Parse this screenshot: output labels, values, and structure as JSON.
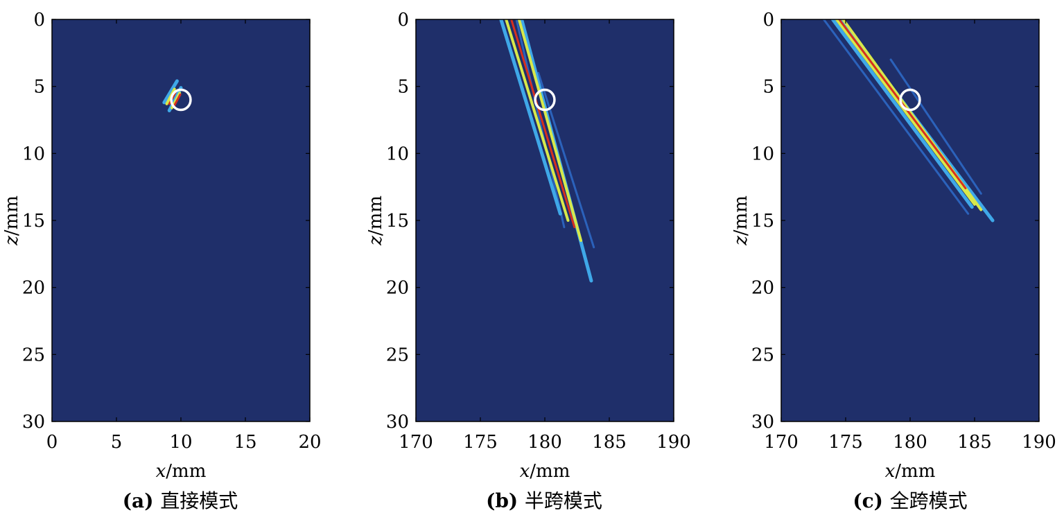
{
  "colors": {
    "background": "#1f2f6a",
    "frame": "#000000",
    "marker": "#ffffff",
    "beam_outer": "#3fa8e8",
    "beam_mid": "#d8e84a",
    "beam_core": "#d7301f",
    "beam_faint": "#2f6fd0"
  },
  "chart_data": [
    {
      "type": "heatmap",
      "xlabel": {
        "var": "x",
        "unit": "/mm"
      },
      "ylabel": {
        "var": "z",
        "unit": "/mm"
      },
      "xlim": [
        0,
        20
      ],
      "ylim": [
        0,
        30
      ],
      "y_inverted": true,
      "xticks": [
        0,
        5,
        10,
        15,
        20
      ],
      "yticks": [
        0,
        5,
        10,
        15,
        20,
        25,
        30
      ],
      "xtick_labels": [
        "0",
        "5",
        "10",
        "15",
        "20"
      ],
      "ytick_labels": [
        "0",
        "5",
        "10",
        "15",
        "20",
        "25",
        "30"
      ],
      "caption": {
        "tag": "(a)",
        "text": "直接模式"
      },
      "marker_circle": {
        "x": 10,
        "z": 6,
        "r": 0.75
      },
      "beams": [
        {
          "x0": 9.7,
          "z0": 4.6,
          "x1": 8.7,
          "z1": 6.2,
          "level": "outer"
        },
        {
          "x0": 10.0,
          "z0": 5.1,
          "x1": 9.1,
          "z1": 6.8,
          "level": "outer"
        },
        {
          "x0": 9.5,
          "z0": 5.2,
          "x1": 8.9,
          "z1": 6.3,
          "level": "mid"
        },
        {
          "x0": 9.9,
          "z0": 5.5,
          "x1": 9.3,
          "z1": 6.6,
          "level": "mid"
        },
        {
          "x0": 9.6,
          "z0": 5.4,
          "x1": 9.1,
          "z1": 6.3,
          "level": "core"
        },
        {
          "x0": 9.95,
          "z0": 5.6,
          "x1": 9.45,
          "z1": 6.5,
          "level": "core"
        }
      ]
    },
    {
      "type": "heatmap",
      "xlabel": {
        "var": "x",
        "unit": "/mm"
      },
      "ylabel": {
        "var": "z",
        "unit": "/mm"
      },
      "xlim": [
        170,
        190
      ],
      "ylim": [
        0,
        30
      ],
      "y_inverted": true,
      "xticks": [
        170,
        175,
        180,
        185,
        190
      ],
      "yticks": [
        0,
        5,
        10,
        15,
        20,
        25,
        30
      ],
      "xtick_labels": [
        "170",
        "175",
        "180",
        "185",
        "190"
      ],
      "ytick_labels": [
        "0",
        "5",
        "10",
        "15",
        "20",
        "25",
        "30"
      ],
      "caption": {
        "tag": "(b)",
        "text": "半跨模式"
      },
      "marker_circle": {
        "x": 180,
        "z": 6,
        "r": 0.75
      },
      "beams": [
        {
          "x0": 177.8,
          "z0": 0,
          "x1": 181.5,
          "z1": 15.5,
          "level": "faint"
        },
        {
          "x0": 179.5,
          "z0": 4,
          "x1": 183.8,
          "z1": 17.0,
          "level": "faint"
        },
        {
          "x0": 176.6,
          "z0": 0,
          "x1": 181.2,
          "z1": 14.5,
          "level": "outer"
        },
        {
          "x0": 178.2,
          "z0": 0,
          "x1": 183.6,
          "z1": 19.5,
          "level": "outer"
        },
        {
          "x0": 177.0,
          "z0": 0,
          "x1": 181.8,
          "z1": 15.0,
          "level": "mid"
        },
        {
          "x0": 178.0,
          "z0": 0,
          "x1": 182.8,
          "z1": 16.5,
          "level": "mid"
        },
        {
          "x0": 177.4,
          "z0": 0,
          "x1": 182.3,
          "z1": 15.5,
          "level": "core"
        }
      ]
    },
    {
      "type": "heatmap",
      "xlabel": {
        "var": "x",
        "unit": "/mm"
      },
      "ylabel": {
        "var": "z",
        "unit": "/mm"
      },
      "xlim": [
        170,
        190
      ],
      "ylim": [
        0,
        30
      ],
      "y_inverted": true,
      "xticks": [
        170,
        175,
        180,
        185,
        190
      ],
      "yticks": [
        0,
        5,
        10,
        15,
        20,
        25,
        30
      ],
      "xtick_labels": [
        "170",
        "175",
        "180",
        "185",
        "190"
      ],
      "ytick_labels": [
        "0",
        "5",
        "10",
        "15",
        "20",
        "25",
        "30"
      ],
      "caption": {
        "tag": "(c)",
        "text": "全跨模式"
      },
      "marker_circle": {
        "x": 180,
        "z": 6,
        "r": 0.75
      },
      "beams": [
        {
          "x0": 173.3,
          "z0": 0,
          "x1": 184.5,
          "z1": 14.5,
          "level": "faint"
        },
        {
          "x0": 178.5,
          "z0": 3,
          "x1": 185.5,
          "z1": 13.0,
          "level": "faint"
        },
        {
          "x0": 174.0,
          "z0": 0,
          "x1": 184.8,
          "z1": 14.0,
          "level": "outer"
        },
        {
          "x0": 174.6,
          "z0": 0,
          "x1": 186.4,
          "z1": 15.0,
          "level": "outer"
        },
        {
          "x0": 174.3,
          "z0": 0,
          "x1": 185.0,
          "z1": 13.8,
          "level": "mid"
        },
        {
          "x0": 174.8,
          "z0": 0,
          "x1": 185.5,
          "z1": 14.2,
          "level": "mid"
        },
        {
          "x0": 174.5,
          "z0": 0,
          "x1": 184.3,
          "z1": 12.6,
          "level": "core"
        }
      ]
    }
  ]
}
